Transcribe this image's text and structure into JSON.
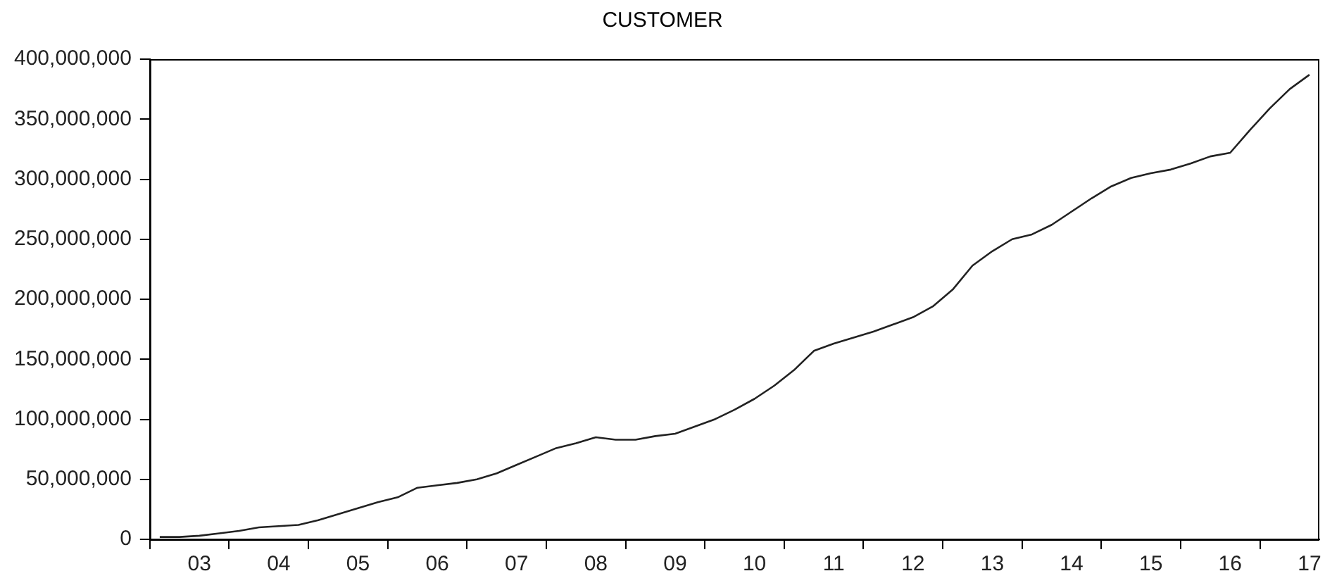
{
  "chart_data": {
    "type": "line",
    "title": "CUSTOMER",
    "categories": [
      null,
      null,
      "03",
      null,
      null,
      null,
      "04",
      null,
      null,
      null,
      "05",
      null,
      null,
      null,
      "06",
      null,
      null,
      null,
      "07",
      null,
      null,
      null,
      "08",
      null,
      null,
      null,
      "09",
      null,
      null,
      null,
      "10",
      null,
      null,
      null,
      "11",
      null,
      null,
      null,
      "12",
      null,
      null,
      null,
      "13",
      null,
      null,
      null,
      "14",
      null,
      null,
      null,
      "15",
      null,
      null,
      null,
      "16",
      null,
      null,
      null,
      "17"
    ],
    "series": [
      {
        "color": "#222222",
        "values": [
          2000000,
          2000000,
          3000000,
          5000000,
          7000000,
          10000000,
          11000000,
          12000000,
          16000000,
          21000000,
          26000000,
          31000000,
          35000000,
          43000000,
          45000000,
          47000000,
          50000000,
          55000000,
          62000000,
          69000000,
          76000000,
          80000000,
          85000000,
          83000000,
          83000000,
          86000000,
          88000000,
          94000000,
          100000000,
          108000000,
          117000000,
          128000000,
          141000000,
          157000000,
          163000000,
          168000000,
          173000000,
          179000000,
          185000000,
          194000000,
          208000000,
          228000000,
          240000000,
          250000000,
          254000000,
          262000000,
          273000000,
          284000000,
          294000000,
          301000000,
          305000000,
          308000000,
          313000000,
          319000000,
          322000000,
          341000000,
          359000000,
          375000000,
          387000000
        ]
      }
    ],
    "ylim": [
      0,
      400000000
    ],
    "yticks": [
      {
        "value": 0,
        "label": "0"
      },
      {
        "value": 50000000,
        "label": "50,000,000"
      },
      {
        "value": 100000000,
        "label": "100,000,000"
      },
      {
        "value": 150000000,
        "label": "150,000,000"
      },
      {
        "value": 200000000,
        "label": "200,000,000"
      },
      {
        "value": 250000000,
        "label": "250,000,000"
      },
      {
        "value": 300000000,
        "label": "300,000,000"
      },
      {
        "value": 350000000,
        "label": "350,000,000"
      },
      {
        "value": 400000000,
        "label": "400,000,000"
      }
    ],
    "grid": false,
    "legend": false,
    "marker": "none",
    "line_style": "solid"
  }
}
